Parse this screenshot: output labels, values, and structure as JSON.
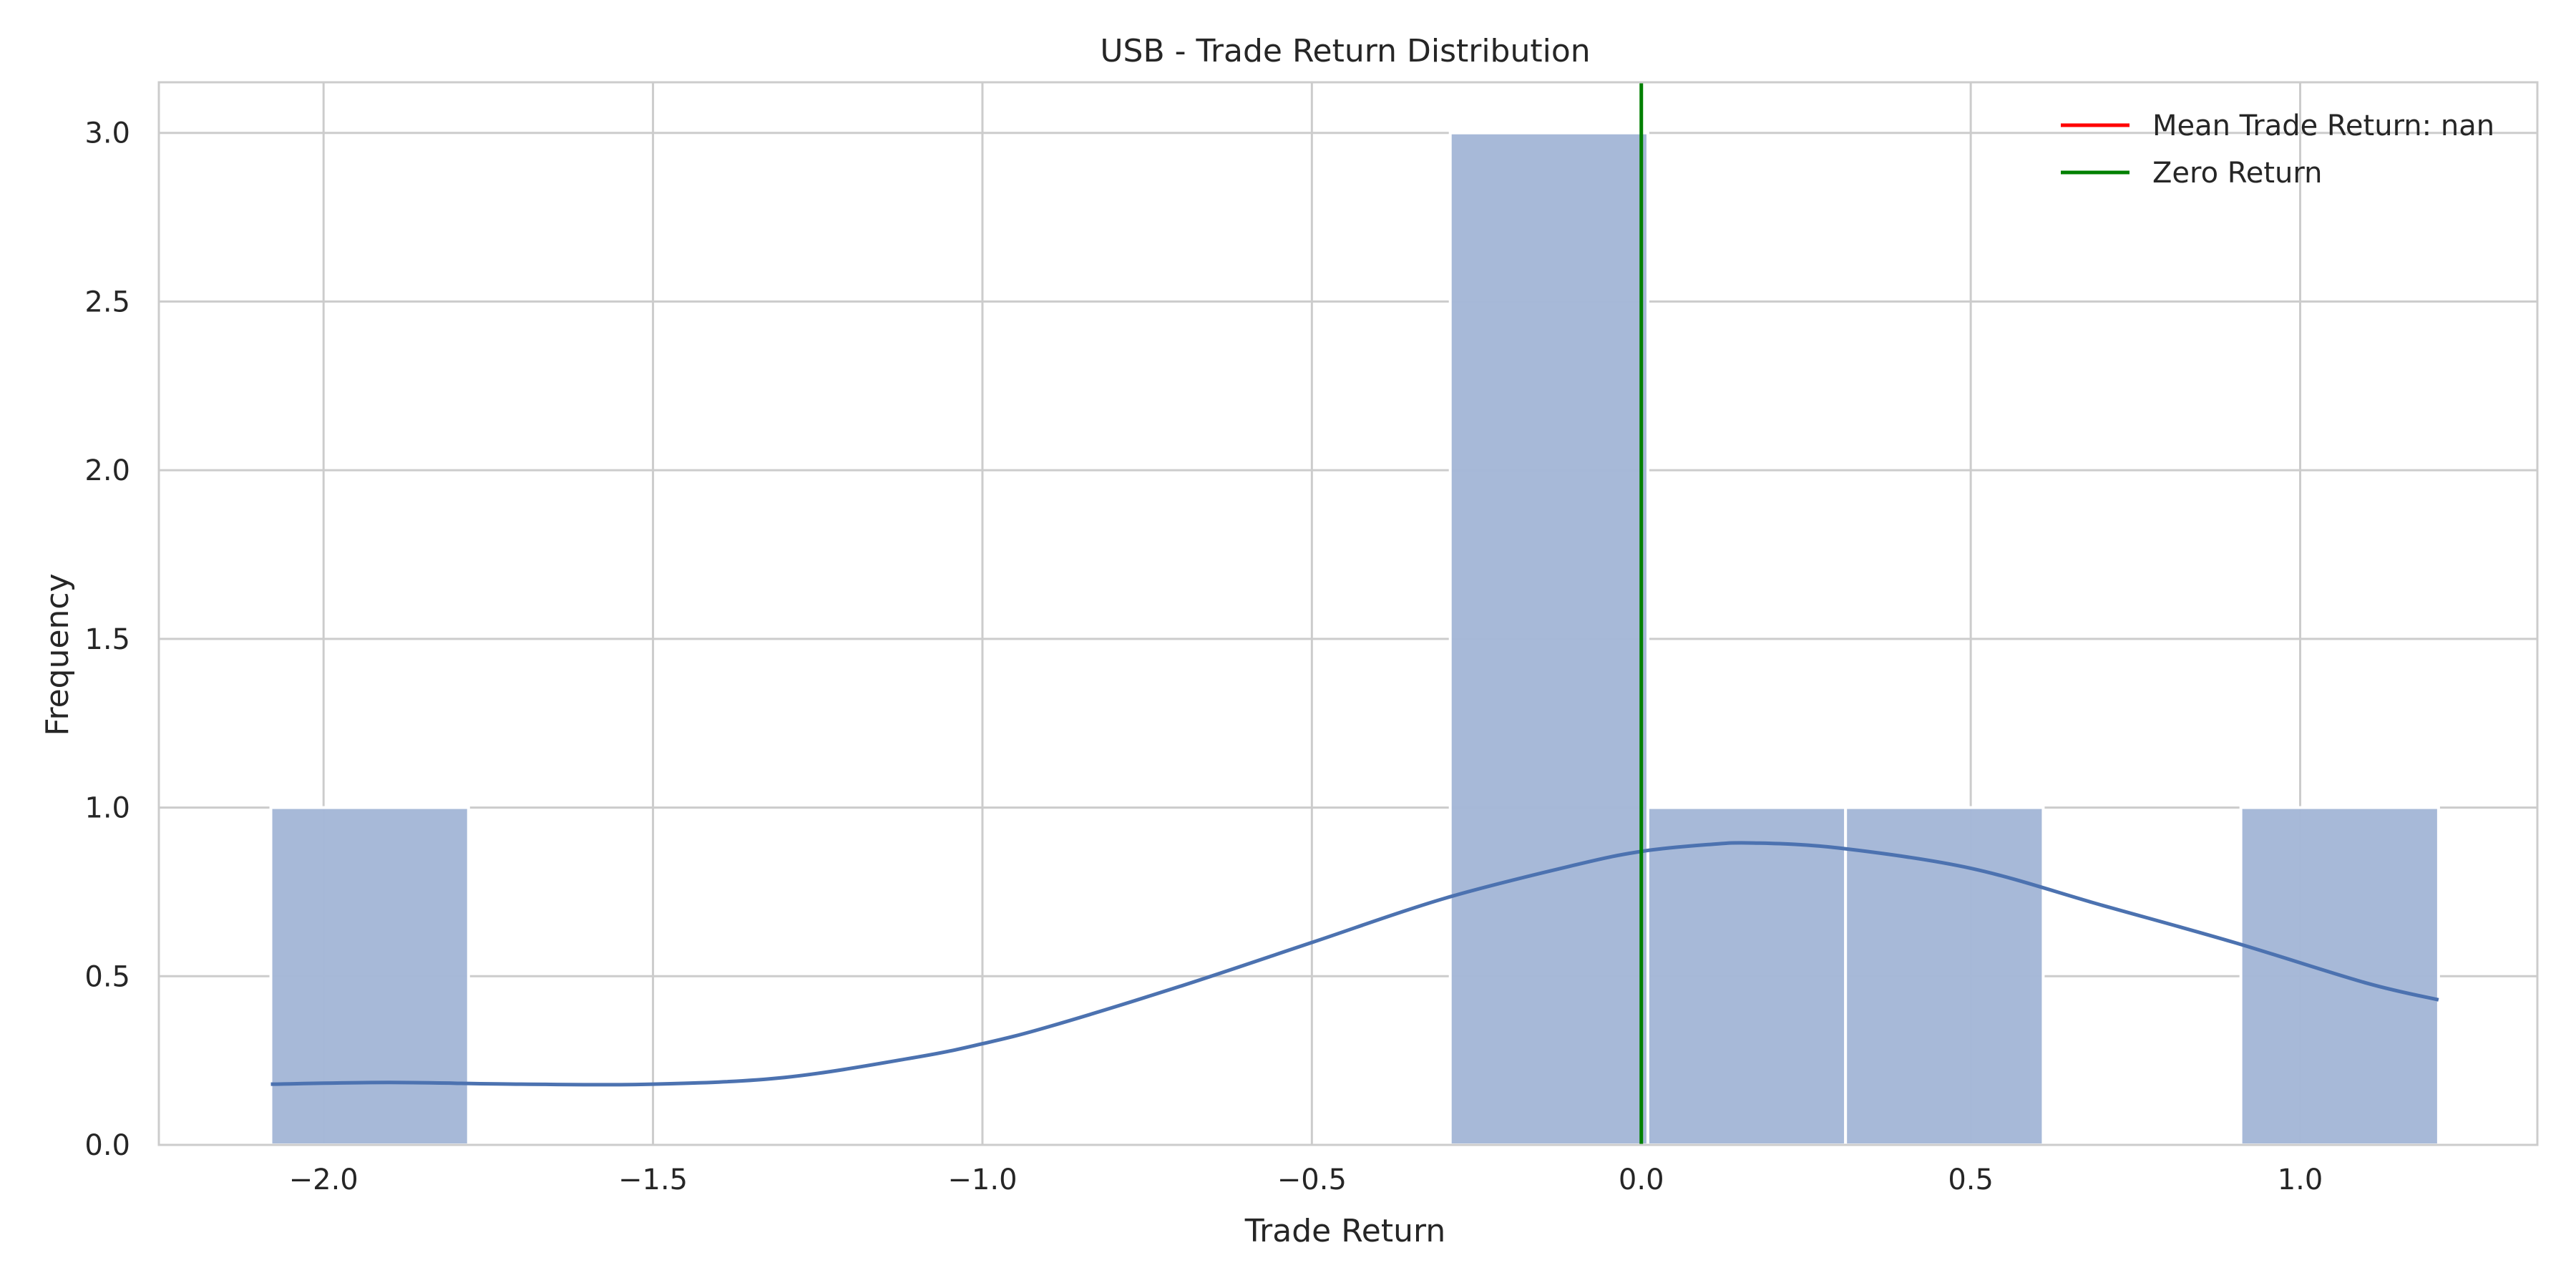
{
  "chart_data": {
    "type": "bar",
    "title": "USB - Trade Return Distribution",
    "xlabel": "Trade Return",
    "ylabel": "Frequency",
    "xlim": [
      -2.25,
      1.36
    ],
    "ylim": [
      0,
      3.15
    ],
    "xticks": [
      -2.0,
      -1.5,
      -1.0,
      -0.5,
      0.0,
      0.5,
      1.0
    ],
    "xtick_labels": [
      "−2.0",
      "−1.5",
      "−1.0",
      "−0.5",
      "0.0",
      "0.5",
      "1.0"
    ],
    "yticks": [
      0.0,
      0.5,
      1.0,
      1.5,
      2.0,
      2.5,
      3.0
    ],
    "ytick_labels": [
      "0.0",
      "0.5",
      "1.0",
      "1.5",
      "2.0",
      "2.5",
      "3.0"
    ],
    "grid": true,
    "histogram_bins": [
      {
        "x0": -2.08,
        "x1": -1.78,
        "count": 1
      },
      {
        "x0": -1.78,
        "x1": -1.48,
        "count": 0
      },
      {
        "x0": -1.48,
        "x1": -1.18,
        "count": 0
      },
      {
        "x0": -1.18,
        "x1": -0.88,
        "count": 0
      },
      {
        "x0": -0.88,
        "x1": -0.58,
        "count": 0
      },
      {
        "x0": -0.58,
        "x1": -0.29,
        "count": 0
      },
      {
        "x0": -0.29,
        "x1": 0.01,
        "count": 3
      },
      {
        "x0": 0.01,
        "x1": 0.31,
        "count": 1
      },
      {
        "x0": 0.31,
        "x1": 0.61,
        "count": 1
      },
      {
        "x0": 0.61,
        "x1": 0.91,
        "count": 0
      },
      {
        "x0": 0.91,
        "x1": 1.21,
        "count": 1
      }
    ],
    "kde_curve": {
      "x": [
        -2.08,
        -1.9,
        -1.7,
        -1.5,
        -1.3,
        -1.1,
        -1.0,
        -0.9,
        -0.7,
        -0.5,
        -0.3,
        -0.1,
        0.0,
        0.1,
        0.17,
        0.3,
        0.5,
        0.7,
        0.9,
        1.1,
        1.21
      ],
      "y": [
        0.18,
        0.185,
        0.18,
        0.18,
        0.2,
        0.26,
        0.3,
        0.35,
        0.47,
        0.6,
        0.73,
        0.83,
        0.87,
        0.89,
        0.895,
        0.88,
        0.82,
        0.71,
        0.6,
        0.48,
        0.43
      ]
    },
    "vertical_lines": [
      {
        "name": "Zero Return",
        "x": 0.0,
        "color": "#008000"
      }
    ],
    "legend": {
      "placement": "top-right",
      "entries": [
        {
          "label": "Mean Trade Return: nan",
          "color": "#ff0000"
        },
        {
          "label": "Zero Return",
          "color": "#008000"
        }
      ]
    },
    "colors": {
      "bar_fill": "#a5b8d7",
      "kde_line": "#4c72b0",
      "grid": "#cccccc",
      "axes_edge": "#cccccc"
    }
  }
}
